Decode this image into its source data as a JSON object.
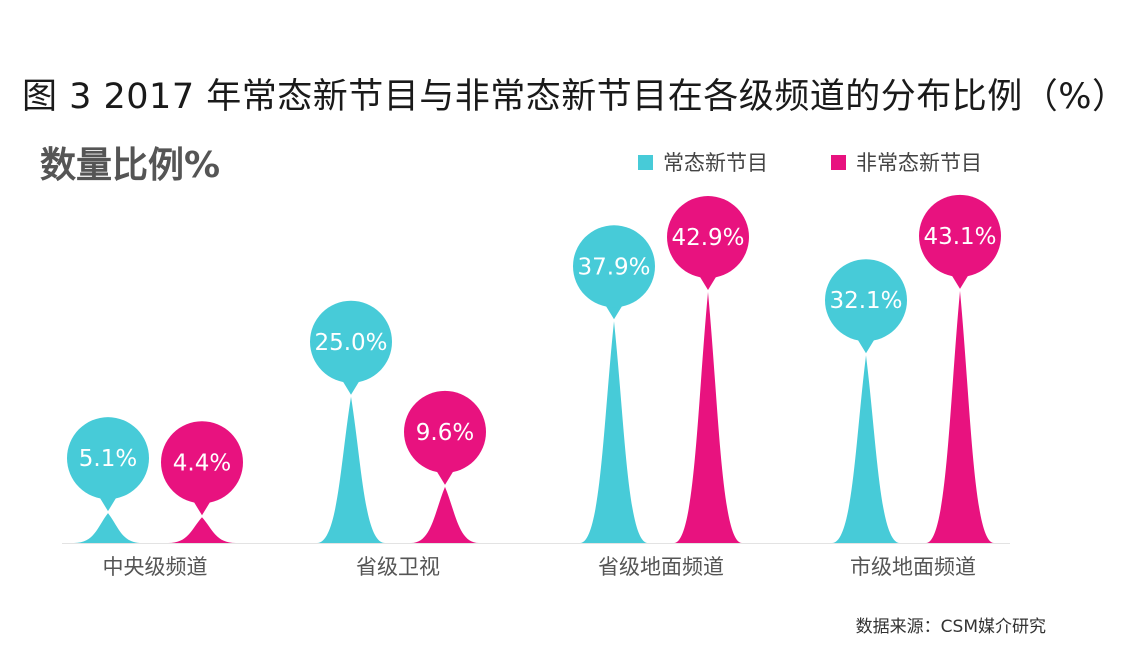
{
  "chart_data": {
    "type": "bar",
    "title": "图 3  2017 年常态新节目与非常态新节目在各级频道的分布比例（%）",
    "subtitle": "数量比例%",
    "source": "数据来源：CSM媒介研究",
    "categories": [
      "中央级频道",
      "省级卫视",
      "省级地面频道",
      "市级地面频道"
    ],
    "series": [
      {
        "name": "常态新节目",
        "color": "#47cbd8",
        "values": [
          5.1,
          25.0,
          37.9,
          32.1
        ],
        "labels": [
          "5.1%",
          "25.0%",
          "37.9%",
          "32.1%"
        ]
      },
      {
        "name": "非常态新节目",
        "color": "#e8127f",
        "values": [
          4.4,
          9.6,
          42.9,
          43.1
        ],
        "labels": [
          "4.4%",
          "9.6%",
          "42.9%",
          "43.1%"
        ]
      }
    ],
    "legend_position": "top-right",
    "grid": false
  }
}
